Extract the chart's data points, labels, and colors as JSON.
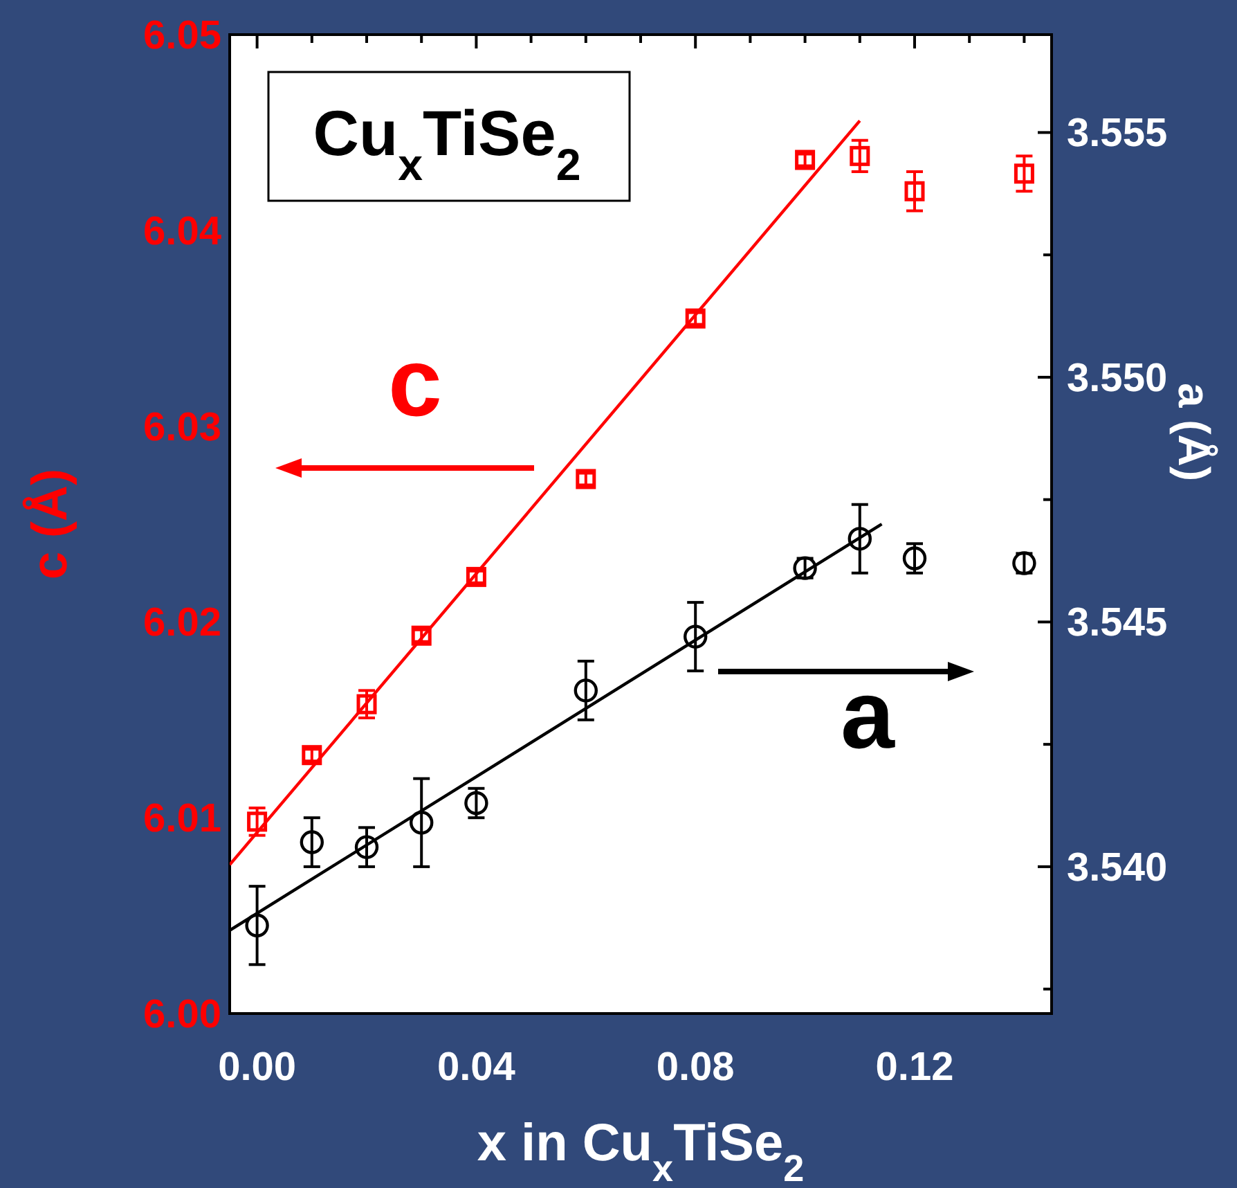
{
  "chart_data": {
    "type": "scatter",
    "xlabel": "x  in Cu$_{x}$TiSe$_{2}$",
    "ylabel": "c (Å)",
    "y2label": "a (Å)",
    "xlim": [
      -0.005,
      0.145
    ],
    "xticks": [
      {
        "value": 0,
        "label": "0.00"
      },
      {
        "value": 0.01,
        "label": null
      },
      {
        "value": 0.02,
        "label": null
      },
      {
        "value": 0.03,
        "label": null
      },
      0.04,
      {
        "value": 0.05,
        "label": null
      },
      {
        "value": 0.06,
        "label": null
      },
      {
        "value": 0.07,
        "label": null
      },
      0.08,
      {
        "value": 0.09,
        "label": null
      },
      {
        "value": 0.1,
        "label": null
      },
      {
        "value": 0.11,
        "label": null
      },
      0.12,
      {
        "value": 0.13,
        "label": null
      },
      {
        "value": 0.14,
        "label": null
      }
    ],
    "ylim": [
      6.0,
      6.05
    ],
    "yticks": [
      {
        "value": 6.0,
        "label": "6.00"
      },
      6.01,
      6.02,
      6.03,
      6.04,
      6.05
    ],
    "y2lim": [
      3.537,
      3.557
    ],
    "y2ticks": [
      {
        "value": 3.5375,
        "label": null
      },
      {
        "value": 3.54,
        "label": "3.540"
      },
      {
        "value": 3.5425,
        "label": null
      },
      3.545,
      {
        "value": 3.5475,
        "label": null
      },
      {
        "value": 3.55,
        "label": "3.550"
      },
      {
        "value": 3.5525,
        "label": null
      },
      3.555
    ],
    "series": [
      {
        "axis": "y",
        "marker": "square",
        "color": "#ff0000",
        "x": [
          0,
          0.01,
          0.02,
          0.03,
          0.04,
          0.06,
          0.08,
          0.1,
          0.11,
          0.12,
          0.14
        ],
        "values": [
          6.0098,
          6.0132,
          6.0158,
          6.0193,
          6.0223,
          6.0273,
          6.0355,
          6.0436,
          6.0438,
          6.042,
          6.0429
        ],
        "errors": [
          0.0007,
          0.0003,
          0.0007,
          0.0003,
          0.0003,
          0.0003,
          0.0003,
          0.0003,
          0.0008,
          0.001,
          0.0009
        ]
      },
      {
        "type": "line",
        "axis": "y",
        "color": "#ff0000",
        "line_style": "solid",
        "x": [
          -0.005,
          0.11
        ],
        "values": [
          6.0076,
          6.0456
        ]
      },
      {
        "axis": "y2",
        "marker": "circle",
        "color": "#000000",
        "x": [
          0,
          0.01,
          0.02,
          0.03,
          0.04,
          0.06,
          0.08,
          0.1,
          0.11,
          0.12,
          0.14
        ],
        "values": [
          3.5388,
          3.5405,
          3.5404,
          3.5409,
          3.5413,
          3.5436,
          3.5447,
          3.5461,
          3.5467,
          3.5463,
          3.5462
        ],
        "errors": [
          0.0008,
          0.0005,
          0.0004,
          0.0009,
          0.0003,
          0.0006,
          0.0007,
          0.0002,
          0.0007,
          0.0003,
          0.0002
        ]
      },
      {
        "type": "line",
        "axis": "y2",
        "color": "#000000",
        "line_style": "solid",
        "x": [
          -0.005,
          0.114
        ],
        "values": [
          3.5387,
          3.547
        ]
      }
    ],
    "annotations": [
      "Cu$_{x}$TiSe$_{2}$",
      "c",
      "a"
    ]
  }
}
